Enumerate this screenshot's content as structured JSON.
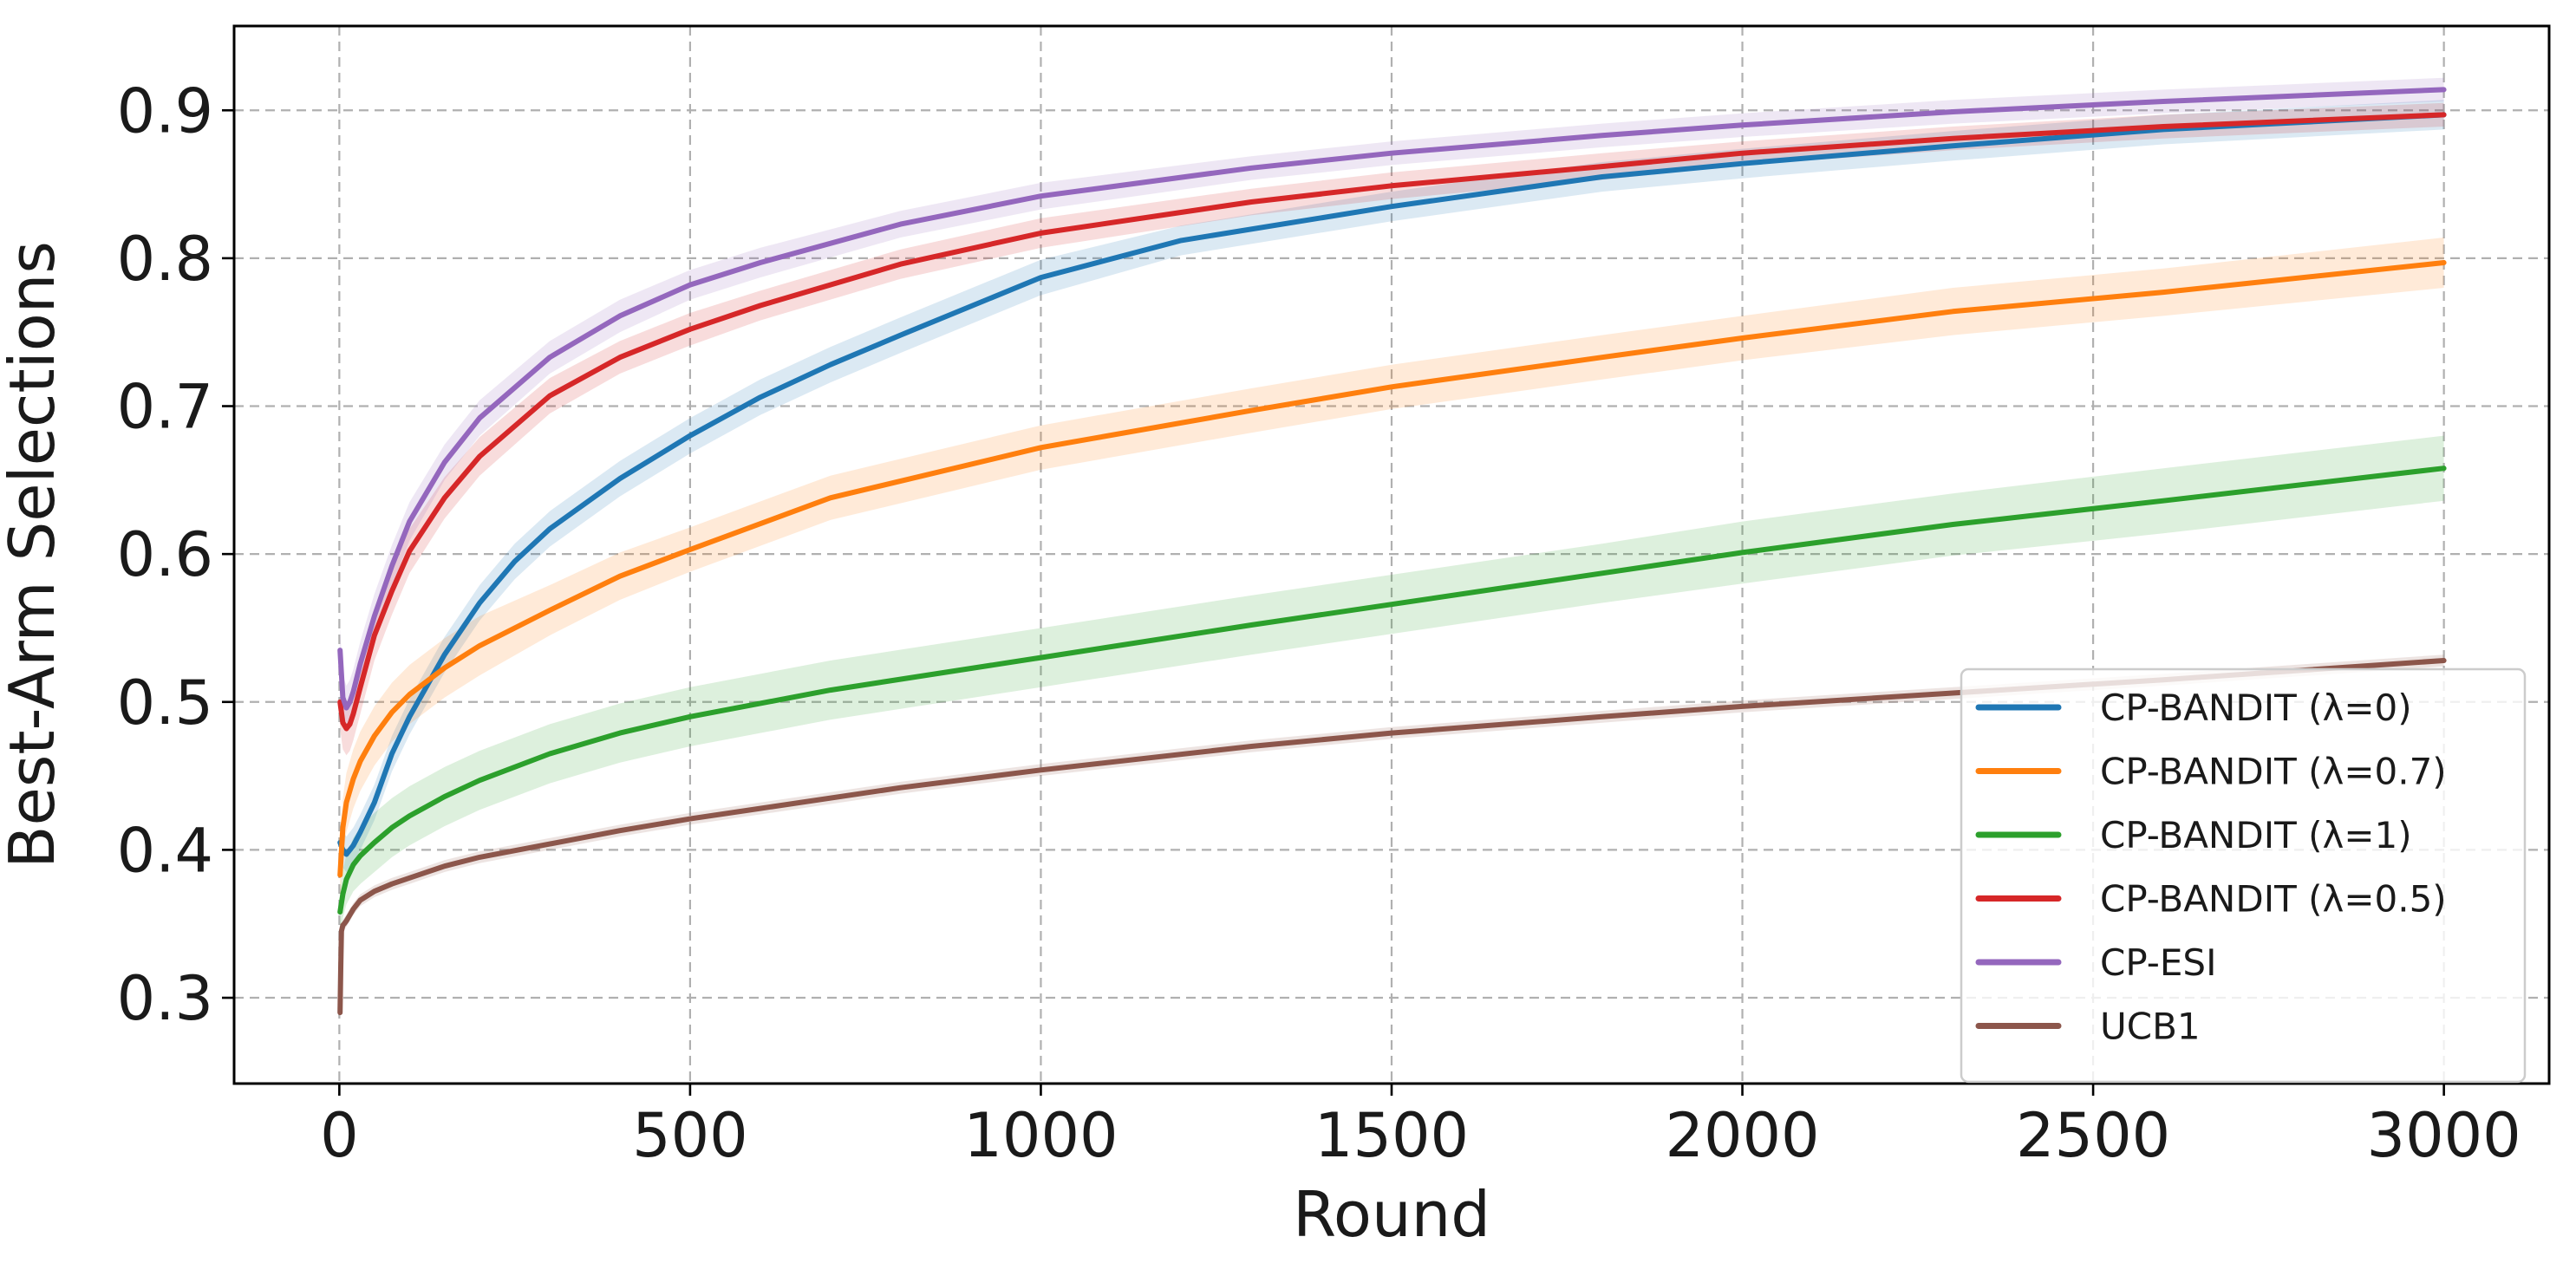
{
  "chart_data": {
    "type": "line",
    "title": "",
    "xlabel": "Round",
    "ylabel": "Best-Arm Selections",
    "xlim": [
      -150,
      3150
    ],
    "ylim": [
      0.242,
      0.957
    ],
    "xticks": [
      0,
      500,
      1000,
      1500,
      2000,
      2500,
      3000
    ],
    "yticks": [
      0.3,
      0.4,
      0.5,
      0.6,
      0.7,
      0.8,
      0.9
    ],
    "xtick_labels": [
      "0",
      "500",
      "1000",
      "1500",
      "2000",
      "2500",
      "3000"
    ],
    "ytick_labels": [
      "0.3",
      "0.4",
      "0.5",
      "0.6",
      "0.7",
      "0.8",
      "0.9"
    ],
    "grid": true,
    "legend_position": "lower-right",
    "band": "shaded confidence band around each mean curve",
    "series": [
      {
        "name": "CP-BANDIT (λ=0)",
        "color": "#1f77b4",
        "x": [
          1,
          5,
          10,
          20,
          30,
          50,
          75,
          100,
          150,
          200,
          250,
          300,
          400,
          500,
          600,
          700,
          800,
          1000,
          1200,
          1500,
          1800,
          2000,
          2300,
          2600,
          3000
        ],
        "y": [
          0.405,
          0.4,
          0.397,
          0.403,
          0.412,
          0.432,
          0.465,
          0.49,
          0.532,
          0.567,
          0.595,
          0.617,
          0.651,
          0.68,
          0.706,
          0.728,
          0.748,
          0.787,
          0.812,
          0.835,
          0.855,
          0.864,
          0.876,
          0.887,
          0.897
        ],
        "band": [
          0.012,
          0.012,
          0.012,
          0.012,
          0.012,
          0.012,
          0.012,
          0.012,
          0.012,
          0.012,
          0.012,
          0.012,
          0.012,
          0.012,
          0.012,
          0.012,
          0.012,
          0.012,
          0.01,
          0.01,
          0.01,
          0.01,
          0.01,
          0.01,
          0.01
        ]
      },
      {
        "name": "CP-BANDIT (λ=0.7)",
        "color": "#ff7f0e",
        "x": [
          1,
          5,
          10,
          20,
          30,
          50,
          75,
          100,
          150,
          200,
          300,
          400,
          500,
          700,
          1000,
          1300,
          1500,
          1800,
          2000,
          2300,
          2600,
          3000
        ],
        "y": [
          0.383,
          0.415,
          0.432,
          0.448,
          0.46,
          0.477,
          0.493,
          0.505,
          0.523,
          0.538,
          0.562,
          0.585,
          0.603,
          0.638,
          0.672,
          0.697,
          0.713,
          0.733,
          0.746,
          0.764,
          0.777,
          0.797
        ],
        "band": [
          0.02,
          0.02,
          0.02,
          0.02,
          0.02,
          0.02,
          0.02,
          0.02,
          0.02,
          0.02,
          0.017,
          0.016,
          0.015,
          0.015,
          0.015,
          0.015,
          0.015,
          0.015,
          0.015,
          0.016,
          0.016,
          0.017
        ]
      },
      {
        "name": "CP-BANDIT (λ=1)",
        "color": "#2ca02c",
        "x": [
          1,
          5,
          10,
          20,
          30,
          50,
          75,
          100,
          150,
          200,
          300,
          400,
          500,
          700,
          1000,
          1300,
          1500,
          1800,
          2000,
          2300,
          2600,
          3000
        ],
        "y": [
          0.358,
          0.37,
          0.38,
          0.39,
          0.396,
          0.405,
          0.415,
          0.423,
          0.436,
          0.447,
          0.465,
          0.479,
          0.49,
          0.508,
          0.53,
          0.552,
          0.566,
          0.587,
          0.601,
          0.62,
          0.636,
          0.658
        ],
        "band": [
          0.015,
          0.016,
          0.017,
          0.018,
          0.019,
          0.02,
          0.02,
          0.02,
          0.02,
          0.02,
          0.02,
          0.02,
          0.02,
          0.02,
          0.02,
          0.02,
          0.02,
          0.02,
          0.021,
          0.021,
          0.022,
          0.022
        ]
      },
      {
        "name": "CP-BANDIT (λ=0.5)",
        "color": "#d62728",
        "x": [
          1,
          5,
          10,
          15,
          20,
          30,
          50,
          75,
          100,
          150,
          200,
          300,
          400,
          500,
          600,
          800,
          1000,
          1300,
          1500,
          1800,
          2000,
          2300,
          2600,
          3000
        ],
        "y": [
          0.5,
          0.486,
          0.482,
          0.485,
          0.492,
          0.51,
          0.545,
          0.575,
          0.602,
          0.638,
          0.666,
          0.707,
          0.733,
          0.752,
          0.768,
          0.796,
          0.817,
          0.838,
          0.849,
          0.862,
          0.871,
          0.881,
          0.889,
          0.897
        ],
        "band": [
          0.018,
          0.018,
          0.018,
          0.018,
          0.018,
          0.018,
          0.017,
          0.016,
          0.015,
          0.014,
          0.013,
          0.012,
          0.011,
          0.011,
          0.01,
          0.01,
          0.01,
          0.009,
          0.009,
          0.009,
          0.008,
          0.008,
          0.008,
          0.008
        ]
      },
      {
        "name": "CP-ESI",
        "color": "#9467bd",
        "x": [
          1,
          5,
          10,
          15,
          20,
          30,
          50,
          75,
          100,
          150,
          200,
          300,
          400,
          500,
          600,
          800,
          1000,
          1300,
          1500,
          1800,
          2000,
          2300,
          2600,
          3000
        ],
        "y": [
          0.535,
          0.503,
          0.496,
          0.5,
          0.507,
          0.526,
          0.558,
          0.592,
          0.622,
          0.662,
          0.692,
          0.733,
          0.761,
          0.782,
          0.797,
          0.823,
          0.842,
          0.861,
          0.871,
          0.883,
          0.89,
          0.899,
          0.906,
          0.914
        ],
        "band": [
          0.015,
          0.015,
          0.015,
          0.015,
          0.015,
          0.015,
          0.015,
          0.014,
          0.013,
          0.012,
          0.012,
          0.011,
          0.011,
          0.01,
          0.01,
          0.009,
          0.009,
          0.008,
          0.008,
          0.008,
          0.008,
          0.008,
          0.008,
          0.008
        ]
      },
      {
        "name": "UCB1",
        "color": "#8c564b",
        "x": [
          1,
          2,
          3,
          5,
          7,
          10,
          15,
          20,
          30,
          50,
          75,
          100,
          150,
          200,
          300,
          400,
          500,
          600,
          800,
          1000,
          1300,
          1500,
          1800,
          2000,
          2300,
          2600,
          3000
        ],
        "y": [
          0.29,
          0.32,
          0.345,
          0.349,
          0.35,
          0.352,
          0.356,
          0.36,
          0.366,
          0.372,
          0.377,
          0.381,
          0.389,
          0.395,
          0.404,
          0.413,
          0.421,
          0.428,
          0.442,
          0.454,
          0.47,
          0.479,
          0.49,
          0.497,
          0.506,
          0.515,
          0.528
        ],
        "band": [
          0.004,
          0.004,
          0.004,
          0.004,
          0.004,
          0.004,
          0.004,
          0.004,
          0.004,
          0.004,
          0.004,
          0.004,
          0.004,
          0.004,
          0.004,
          0.004,
          0.004,
          0.004,
          0.004,
          0.004,
          0.004,
          0.004,
          0.004,
          0.004,
          0.004,
          0.004,
          0.004
        ]
      }
    ]
  }
}
